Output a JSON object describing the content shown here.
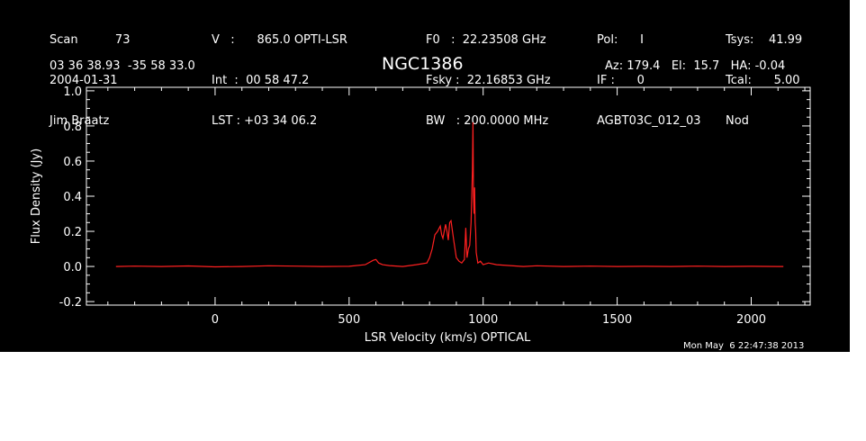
{
  "header": {
    "col1": [
      "Scan          73",
      "2004-01-31",
      "Jim Braatz"
    ],
    "col2": [
      "V   :      865.0 OPTI-LSR",
      "Int  :  00 58 47.2",
      "LST : +03 34 06.2"
    ],
    "col3": [
      "F0   :  22.23508 GHz",
      "Fsky :  22.16853 GHz",
      "BW   : 200.0000 MHz"
    ],
    "col4": [
      "Pol:      I",
      "IF :      0",
      "AGBT03C_012_03"
    ],
    "col5": [
      "Tsys:    41.99",
      "Tcal:      5.00",
      "Nod"
    ],
    "coords": "03 36 38.93  -35 58 33.0",
    "object": "NGC1386",
    "azel": "Az: 179.4   El:  15.7   HA: -0.04",
    "timestamp": "Mon May  6 22:47:38 2013"
  },
  "colors": {
    "background": "#000000",
    "trace": "#ff2020",
    "axes": "#ffffff"
  },
  "chart_data": {
    "type": "line",
    "title": "NGC1386",
    "xlabel": "LSR Velocity (km/s) OPTICAL",
    "ylabel": "Flux Density (Jy)",
    "xlim": [
      -480,
      2220
    ],
    "ylim": [
      -0.22,
      1.02
    ],
    "xticks": [
      0,
      500,
      1000,
      1500,
      2000
    ],
    "xtick_labels": [
      "0",
      "500",
      "1000",
      "1500",
      "2000"
    ],
    "yticks": [
      -0.2,
      0.0,
      0.2,
      0.4,
      0.6,
      0.8,
      1.0
    ],
    "ytick_labels": [
      "-0.2",
      "0.0",
      "0.2",
      "0.4",
      "0.6",
      "0.8",
      "1.0"
    ],
    "grid": false,
    "series": [
      {
        "color": "#ff2020",
        "x": [
          -370,
          -300,
          -200,
          -100,
          0,
          100,
          200,
          300,
          400,
          500,
          560,
          590,
          600,
          610,
          625,
          650,
          700,
          750,
          790,
          800,
          810,
          820,
          830,
          840,
          845,
          850,
          855,
          860,
          865,
          870,
          875,
          880,
          890,
          900,
          910,
          920,
          930,
          935,
          940,
          945,
          950,
          955,
          960,
          962,
          964,
          966,
          968,
          970,
          972,
          974,
          976,
          980,
          990,
          1000,
          1020,
          1050,
          1100,
          1150,
          1200,
          1300,
          1400,
          1500,
          1600,
          1700,
          1800,
          1900,
          2000,
          2100,
          2120
        ],
        "y": [
          0.0,
          0.002,
          0.0,
          0.003,
          -0.002,
          0.0,
          0.004,
          0.002,
          0.0,
          0.001,
          0.01,
          0.035,
          0.04,
          0.02,
          0.01,
          0.005,
          0.0,
          0.01,
          0.02,
          0.05,
          0.1,
          0.18,
          0.2,
          0.23,
          0.18,
          0.16,
          0.2,
          0.24,
          0.2,
          0.15,
          0.25,
          0.26,
          0.15,
          0.05,
          0.03,
          0.02,
          0.04,
          0.22,
          0.05,
          0.1,
          0.12,
          0.25,
          0.55,
          0.82,
          0.4,
          0.3,
          0.45,
          0.25,
          0.2,
          0.08,
          0.06,
          0.02,
          0.03,
          0.01,
          0.02,
          0.01,
          0.005,
          0.0,
          0.004,
          0.0,
          0.002,
          0.0,
          0.001,
          0.0,
          0.002,
          0.0,
          0.001,
          0.0,
          0.0
        ]
      }
    ]
  }
}
